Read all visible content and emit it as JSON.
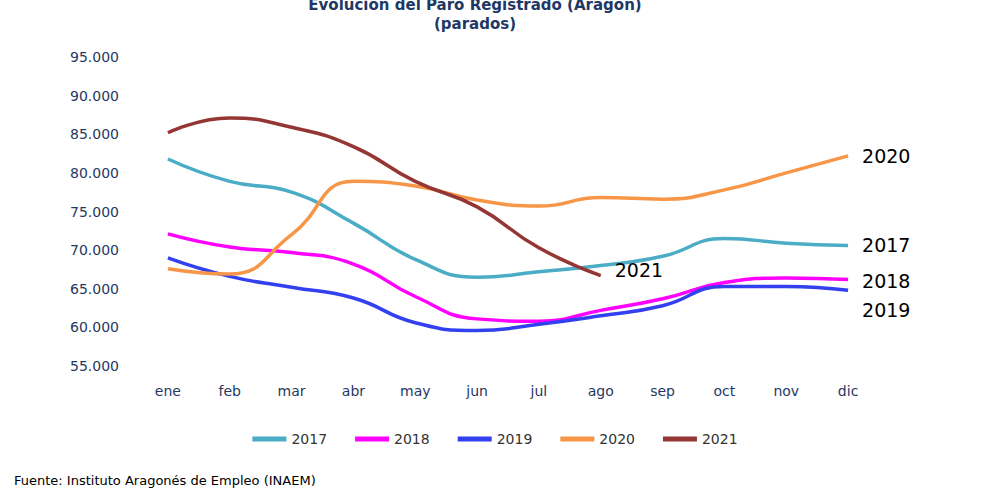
{
  "chart_data": {
    "type": "line",
    "title": "Evolución del Paro Registrado (Aragón)",
    "subtitle": "(parados)",
    "source": "Fuente: Instituto Aragonés de Empleo (INAEM)",
    "categories": [
      "ene",
      "feb",
      "mar",
      "abr",
      "may",
      "jun",
      "jul",
      "ago",
      "sep",
      "oct",
      "nov",
      "dic"
    ],
    "series": [
      {
        "name": "2017",
        "color": "#4BACC6",
        "values": [
          81800,
          78900,
          77500,
          73500,
          68800,
          66500,
          67200,
          68000,
          69200,
          71500,
          70900,
          70600
        ]
      },
      {
        "name": "2018",
        "color": "#FF00FF",
        "values": [
          72100,
          70400,
          69700,
          68200,
          64000,
          61100,
          60800,
          62200,
          63700,
          65800,
          66400,
          66200
        ]
      },
      {
        "name": "2019",
        "color": "#3340F0",
        "values": [
          69000,
          66600,
          65200,
          63800,
          60600,
          59600,
          60400,
          61500,
          62800,
          65300,
          65300,
          64800
        ]
      },
      {
        "name": "2020",
        "color": "#F79646",
        "values": [
          67600,
          66900,
          72000,
          78900,
          78300,
          76500,
          75700,
          76800,
          76600,
          77800,
          80000,
          82200
        ]
      },
      {
        "name": "2021",
        "color": "#943634",
        "values": [
          85200,
          87100,
          85900,
          83400,
          78900,
          75600,
          70300,
          66700,
          null,
          null,
          null,
          null
        ]
      }
    ],
    "ylim": [
      55000,
      95000
    ],
    "yticks": [
      {
        "value": 55000,
        "label": "55.000"
      },
      {
        "value": 60000,
        "label": "60.000"
      },
      {
        "value": 65000,
        "label": "65.000"
      },
      {
        "value": 70000,
        "label": "70.000"
      },
      {
        "value": 75000,
        "label": "75.000"
      },
      {
        "value": 80000,
        "label": "80.000"
      },
      {
        "value": 85000,
        "label": "85.000"
      },
      {
        "value": 90000,
        "label": "90.000"
      },
      {
        "value": 95000,
        "label": "95.000"
      }
    ],
    "grid": false,
    "legend": "bottom",
    "line_style": "smooth"
  }
}
